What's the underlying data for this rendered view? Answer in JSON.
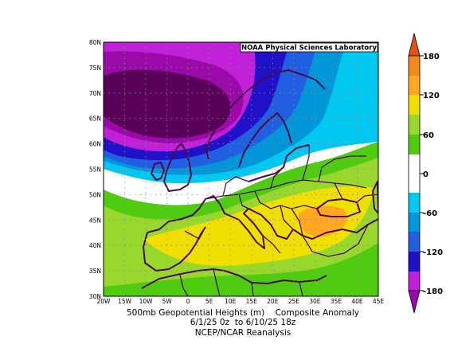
{
  "map": {
    "credit": "NOAA Physical Sciences Laboratory",
    "lat_labels": [
      "80N",
      "75N",
      "70N",
      "65N",
      "60N",
      "55N",
      "50N",
      "45N",
      "40N",
      "35N",
      "30N"
    ],
    "lon_labels": [
      "20W",
      "15W",
      "10W",
      "5W",
      "0",
      "5E",
      "10E",
      "15E",
      "20E",
      "25E",
      "30E",
      "35E",
      "40E",
      "45E"
    ],
    "lat_range": [
      30,
      80
    ],
    "lon_range": [
      -20,
      45
    ],
    "grid": "dotted",
    "variable": "500mb Geopotential Height anomaly (m)",
    "features": {
      "negative_center": "northern Atlantic / Norwegian Sea, minimum about -180",
      "positive_band": "southern Europe and Mediterranean, maximum about 120 over the Balkans"
    }
  },
  "colorbar": {
    "ticks": [
      "180",
      "120",
      "60",
      "0",
      "-60",
      "-120",
      "-180"
    ],
    "colors": {
      "c180": "#e8501a",
      "c150": "#f08a1c",
      "c120": "#ffa820",
      "c90": "#f0e000",
      "c60": "#98d82c",
      "c30": "#50cc10",
      "c0": "#ffffff",
      "cm30": "#00c8f0",
      "cm60": "#0096d8",
      "cm90": "#2060e0",
      "cm120": "#2010c8",
      "cm150": "#c020d8",
      "cm180": "#9a0aa8",
      "cm210": "#5a005a"
    }
  },
  "caption": {
    "line1": "500mb Geopotential Heights (m)    Composite Anomaly",
    "line2": "6/1/25 0z  to 6/10/25 18z",
    "line3": "NCEP/NCAR Reanalysis"
  }
}
